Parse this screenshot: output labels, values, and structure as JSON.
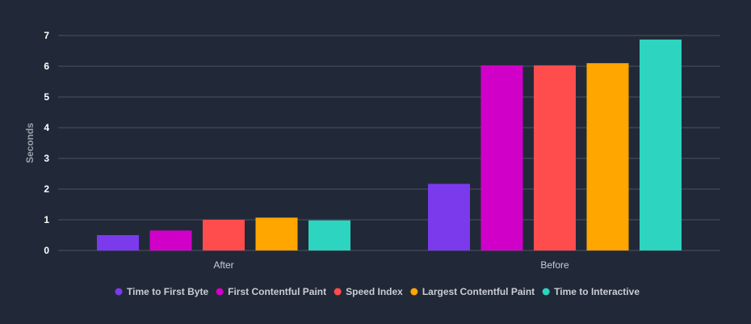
{
  "chart_data": {
    "type": "bar",
    "categories": [
      "After",
      "Before"
    ],
    "series": [
      {
        "name": "Time to First Byte",
        "color": "#7c3aed",
        "values": [
          0.5,
          2.17
        ]
      },
      {
        "name": "First Contentful Paint",
        "color": "#d100c9",
        "values": [
          0.65,
          6.03
        ]
      },
      {
        "name": "Speed Index",
        "color": "#ff4d4d",
        "values": [
          1.0,
          6.03
        ]
      },
      {
        "name": "Largest Contentful Paint",
        "color": "#ffa600",
        "values": [
          1.07,
          6.1
        ]
      },
      {
        "name": "Time to Interactive",
        "color": "#2dd4bf",
        "values": [
          0.98,
          6.87
        ]
      }
    ],
    "xlabel": "",
    "ylabel": "Seconds",
    "ylim": [
      0,
      7
    ],
    "yticks": [
      0,
      1,
      2,
      3,
      4,
      5,
      6,
      7
    ],
    "grid": true,
    "legend": "bottom-center",
    "colors": {
      "background": "#212938",
      "grid": "#4a5263"
    }
  }
}
